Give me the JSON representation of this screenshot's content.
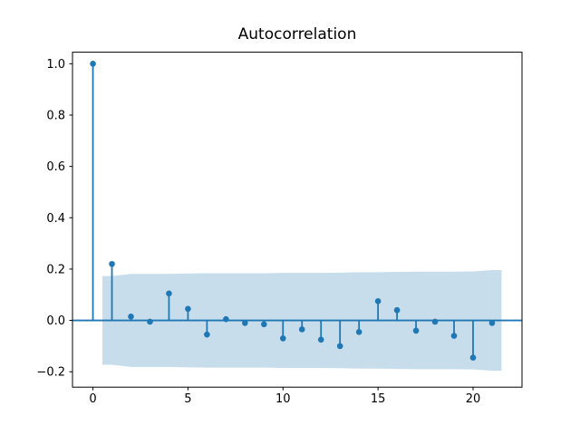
{
  "figure": {
    "title": "Autocorrelation"
  },
  "colors": {
    "stem": "#1f77b4",
    "band_fill": "#1f77b4",
    "band_opacity": 0.25,
    "axis": "#000000",
    "text": "#000000",
    "background": "#ffffff"
  },
  "chart_data": {
    "type": "stem",
    "title": "Autocorrelation",
    "xlabel": "",
    "ylabel": "",
    "x": [
      0,
      1,
      2,
      3,
      4,
      5,
      6,
      7,
      8,
      9,
      10,
      11,
      12,
      13,
      14,
      15,
      16,
      17,
      18,
      19,
      20,
      21
    ],
    "values": [
      1.0,
      0.22,
      0.015,
      -0.005,
      0.105,
      0.045,
      -0.055,
      0.005,
      -0.01,
      -0.015,
      -0.07,
      -0.035,
      -0.075,
      -0.1,
      -0.045,
      0.075,
      0.04,
      -0.04,
      -0.005,
      -0.06,
      -0.145,
      -0.01
    ],
    "zero_line": 0.0,
    "confidence_band": {
      "x": [
        0.5,
        1,
        2,
        3,
        4,
        5,
        6,
        7,
        8,
        9,
        10,
        11,
        12,
        13,
        14,
        15,
        16,
        17,
        18,
        19,
        20,
        21,
        21.5
      ],
      "upper": [
        0.173,
        0.173,
        0.181,
        0.181,
        0.181,
        0.183,
        0.184,
        0.184,
        0.184,
        0.184,
        0.185,
        0.185,
        0.185,
        0.186,
        0.188,
        0.188,
        0.189,
        0.19,
        0.19,
        0.19,
        0.191,
        0.196,
        0.196
      ],
      "lower": [
        -0.173,
        -0.173,
        -0.181,
        -0.181,
        -0.181,
        -0.183,
        -0.184,
        -0.184,
        -0.184,
        -0.184,
        -0.185,
        -0.185,
        -0.185,
        -0.186,
        -0.188,
        -0.188,
        -0.189,
        -0.19,
        -0.19,
        -0.19,
        -0.191,
        -0.196,
        -0.196
      ]
    },
    "xticks": {
      "values": [
        0,
        5,
        10,
        15,
        20
      ],
      "labels": [
        "0",
        "5",
        "10",
        "15",
        "20"
      ]
    },
    "yticks": {
      "values": [
        1.0,
        0.8,
        0.6,
        0.4,
        0.2,
        0.0,
        -0.2
      ],
      "labels": [
        "1.0",
        "0.8",
        "0.6",
        "0.4",
        "0.2",
        "0.0",
        "−0.2"
      ]
    },
    "xlim": [
      -1.075,
      22.575
    ],
    "ylim": [
      -0.26,
      1.045
    ],
    "grid": false,
    "legend": null
  }
}
